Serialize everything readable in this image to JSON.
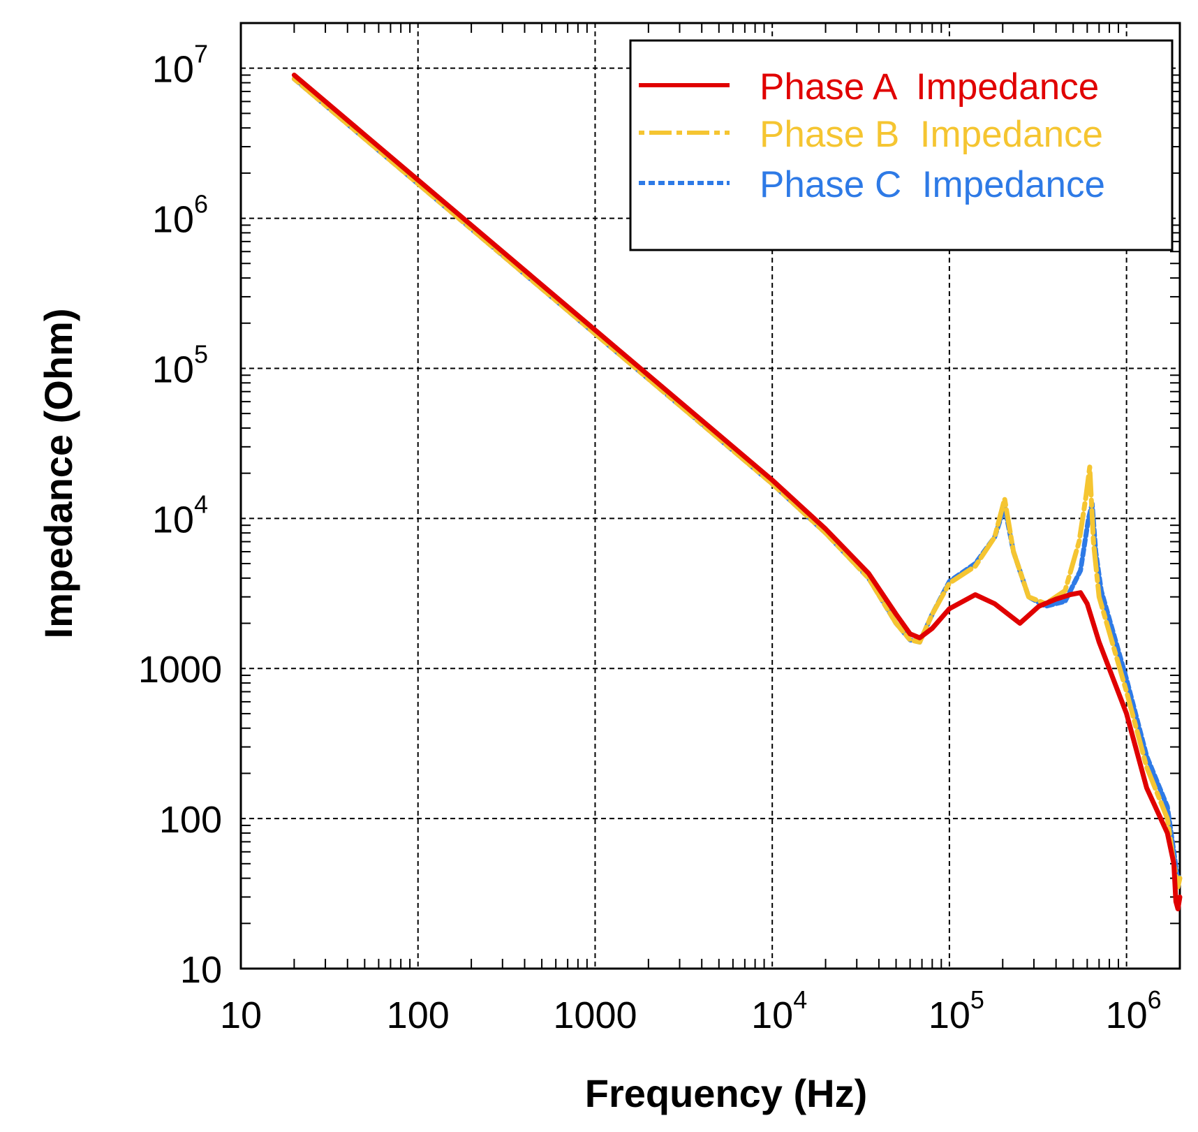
{
  "colors": {
    "phase_a": "#e00000",
    "phase_b": "#f5c531",
    "phase_c": "#2e7ae6",
    "grid": "#000000"
  },
  "chart_data": {
    "type": "line",
    "title": "",
    "xlabel": "Frequency (Hz)",
    "ylabel": "Impedance (Ohm)",
    "xscale": "log",
    "yscale": "log",
    "xlim": [
      10,
      2000000
    ],
    "ylim": [
      10,
      20000000
    ],
    "grid": true,
    "legend_position": "top-right",
    "x_ticks": [
      {
        "value": 10,
        "base": "10",
        "exp": ""
      },
      {
        "value": 100,
        "base": "100",
        "exp": ""
      },
      {
        "value": 1000,
        "base": "1000",
        "exp": ""
      },
      {
        "value": 10000,
        "base": "10",
        "exp": "4"
      },
      {
        "value": 100000,
        "base": "10",
        "exp": "5"
      },
      {
        "value": 1000000,
        "base": "10",
        "exp": "6"
      }
    ],
    "y_ticks": [
      {
        "value": 10,
        "base": "10",
        "exp": ""
      },
      {
        "value": 100,
        "base": "100",
        "exp": ""
      },
      {
        "value": 1000,
        "base": "1000",
        "exp": ""
      },
      {
        "value": 10000,
        "base": "10",
        "exp": "4"
      },
      {
        "value": 100000,
        "base": "10",
        "exp": "5"
      },
      {
        "value": 1000000,
        "base": "10",
        "exp": "6"
      },
      {
        "value": 10000000,
        "base": "10",
        "exp": "7"
      }
    ],
    "series": [
      {
        "name": "Phase A  Impedance",
        "color": "#e00000",
        "style": "solid",
        "x": [
          20,
          50,
          100,
          1000,
          10000,
          20000,
          35000,
          50000,
          60000,
          68000,
          80000,
          100000,
          140000,
          180000,
          250000,
          320000,
          400000,
          480000,
          550000,
          600000,
          700000,
          1000000,
          1300000,
          1700000,
          1850000,
          1900000,
          1950000,
          2000000
        ],
        "y": [
          9000000,
          3600000,
          1800000,
          180000,
          18000,
          8500,
          4300,
          2300,
          1700,
          1600,
          1850,
          2500,
          3100,
          2700,
          2000,
          2600,
          2900,
          3100,
          3200,
          2700,
          1500,
          500,
          160,
          80,
          50,
          28,
          25,
          30
        ]
      },
      {
        "name": "Phase B  Impedance",
        "color": "#f5c531",
        "style": "dash-dot",
        "x": [
          20,
          50,
          100,
          1000,
          10000,
          20000,
          35000,
          50000,
          60000,
          68000,
          80000,
          100000,
          140000,
          180000,
          205000,
          230000,
          280000,
          350000,
          450000,
          540000,
          590000,
          620000,
          650000,
          700000,
          1000000,
          1300000,
          1700000,
          1850000,
          1950000,
          2000000
        ],
        "y": [
          8500000,
          3400000,
          1700000,
          170000,
          17000,
          8000,
          4000,
          2000,
          1550,
          1500,
          2300,
          3700,
          4800,
          7500,
          13500,
          6000,
          3000,
          2700,
          3300,
          7000,
          14000,
          22000,
          7000,
          3000,
          700,
          220,
          100,
          50,
          35,
          40
        ]
      },
      {
        "name": "Phase C  Impedance",
        "color": "#2e7ae6",
        "style": "dotted",
        "x": [
          20,
          50,
          100,
          1000,
          10000,
          20000,
          35000,
          50000,
          60000,
          68000,
          80000,
          100000,
          140000,
          180000,
          205000,
          230000,
          280000,
          350000,
          450000,
          550000,
          610000,
          640000,
          670000,
          720000,
          1000000,
          1300000,
          1700000,
          1850000,
          1950000,
          2000000
        ],
        "y": [
          8500000,
          3400000,
          1700000,
          170000,
          17000,
          8000,
          4000,
          2000,
          1550,
          1500,
          2300,
          3800,
          5000,
          7500,
          12000,
          6000,
          3000,
          2600,
          2800,
          4500,
          10000,
          12500,
          6000,
          3300,
          850,
          260,
          120,
          60,
          38,
          42
        ]
      }
    ]
  }
}
